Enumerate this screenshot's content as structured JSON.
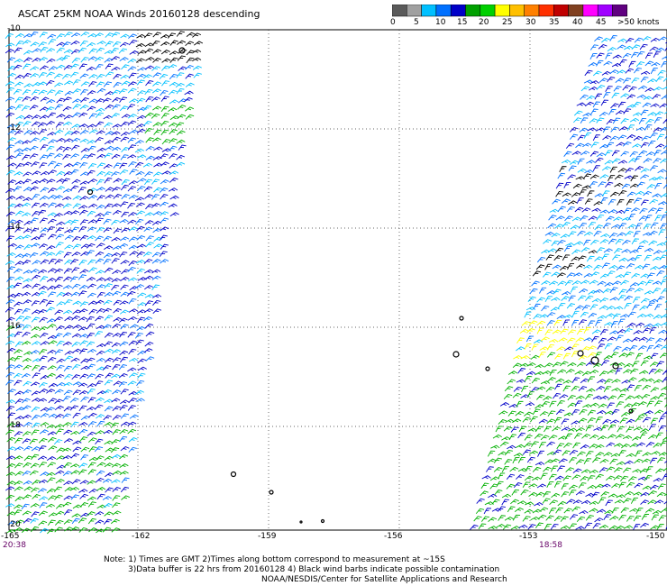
{
  "title": "ASCAT 25KM NOAA Winds 20160128 descending",
  "colorbar": {
    "colors": [
      "#5a5a5a",
      "#a0a0a0",
      "#00c0ff",
      "#0070ff",
      "#0000c8",
      "#00a000",
      "#00d000",
      "#ffff00",
      "#ffc000",
      "#ff8000",
      "#ff3000",
      "#c00000",
      "#804020",
      "#ff00ff",
      "#a000ff",
      "#600080"
    ],
    "labels": [
      "0",
      "5",
      "10",
      "15",
      "20",
      "25",
      "30",
      "35",
      "40",
      "45",
      ">50 knots"
    ]
  },
  "axes": {
    "lat_labels": [
      "-10",
      "-12",
      "-14",
      "-16",
      "-18",
      "-20"
    ],
    "lon_labels": [
      "-165",
      "-162",
      "-159",
      "-156",
      "-153",
      "-150"
    ]
  },
  "times": {
    "left": "20:38",
    "right": "18:58"
  },
  "notes": [
    "Note: 1) Times are GMT 2)Times along bottom correspond to measurement at ~15S",
    "3)Data buffer is 22 hrs from 20160128 4) Black wind barbs indicate possible contamination",
    "NOAA/NESDIS/Center for Satellite Applications and Research"
  ],
  "wind_colors": {
    "black": "#000000",
    "light_blue": "#00c0ff",
    "mid_blue": "#0070ff",
    "dark_blue": "#0000c8",
    "green": "#00b000",
    "yellow": "#ffff00"
  }
}
